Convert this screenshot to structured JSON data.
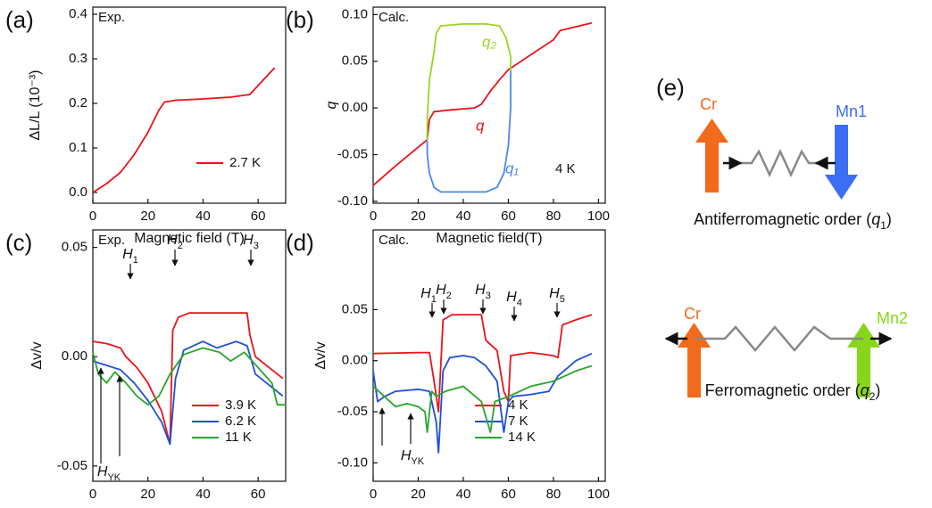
{
  "chart_data": [
    {
      "type": "line",
      "panel_label": "(a)",
      "note": "Exp.",
      "x_label": "Magnetic field (T)",
      "y_label": "ΔL/L (10⁻³)",
      "xlim": [
        0,
        70
      ],
      "ylim": [
        -0.024,
        0.416
      ],
      "xticks": [
        0,
        20,
        40,
        60
      ],
      "yticks": [
        {
          "value": 0,
          "label": "0.0"
        },
        {
          "value": 0.1,
          "label": "0.1"
        },
        {
          "value": 0.2,
          "label": "0.2"
        },
        {
          "value": 0.3,
          "label": "0.3"
        },
        {
          "value": 0.4,
          "label": "0.4"
        }
      ],
      "legend": "lower right",
      "series": [
        {
          "name": "2.7 K",
          "color": "#e8141b",
          "x": [
            0,
            5,
            10,
            15,
            20,
            24,
            26,
            30,
            40,
            50,
            57,
            60,
            63,
            66
          ],
          "values": [
            0,
            0.02,
            0.045,
            0.085,
            0.135,
            0.185,
            0.203,
            0.207,
            0.21,
            0.214,
            0.22,
            0.24,
            0.26,
            0.28
          ]
        }
      ]
    },
    {
      "type": "line",
      "panel_label": "(b)",
      "note": "Calc.",
      "note2": "4 K",
      "x_label": "Magnetic field(T)",
      "y_label": "q",
      "xlim": [
        0,
        103
      ],
      "ylim": [
        -0.102,
        0.108
      ],
      "xticks": [
        0,
        20,
        40,
        60,
        80,
        100
      ],
      "yticks": [
        {
          "value": -0.1,
          "label": "-0.10"
        },
        {
          "value": -0.05,
          "label": "-0.05"
        },
        {
          "value": 0,
          "label": "0.00"
        },
        {
          "value": 0.05,
          "label": "0.05"
        },
        {
          "value": 0.1,
          "label": "0.10"
        }
      ],
      "legend": "inline",
      "series": [
        {
          "name": "q",
          "color": "#e8141b",
          "x": [
            0,
            10,
            20,
            24,
            25,
            27,
            35,
            45,
            48,
            52,
            56,
            60,
            70,
            80,
            83,
            90,
            97
          ],
          "values": [
            -0.083,
            -0.062,
            -0.042,
            -0.034,
            -0.012,
            -0.004,
            -0.002,
            0,
            0.004,
            0.018,
            0.03,
            0.041,
            0.057,
            0.073,
            0.083,
            0.087,
            0.091
          ]
        },
        {
          "name": "q₁",
          "color": "#4d86f0",
          "x": [
            61,
            61,
            60,
            58,
            55,
            50,
            40,
            30,
            27,
            25,
            24,
            24
          ],
          "values": [
            0.04,
            0,
            -0.04,
            -0.07,
            -0.085,
            -0.09,
            -0.09,
            -0.09,
            -0.085,
            -0.07,
            -0.05,
            -0.035
          ]
        },
        {
          "name": "q₂",
          "color": "#9ad425",
          "x": [
            24,
            24,
            25,
            27,
            28,
            30,
            40,
            50,
            56,
            59,
            61,
            61
          ],
          "values": [
            -0.035,
            -0.01,
            0.03,
            0.06,
            0.08,
            0.088,
            0.09,
            0.09,
            0.088,
            0.075,
            0.055,
            0.04
          ]
        }
      ]
    },
    {
      "type": "line",
      "panel_label": "(c)",
      "note": "Exp.",
      "x_label": "Magnetic field (T)",
      "y_label": "Δv/v",
      "xlim": [
        0,
        70
      ],
      "ylim": [
        -0.057,
        0.058
      ],
      "xticks": [
        0,
        20,
        40,
        60
      ],
      "yticks": [
        {
          "value": -0.05,
          "label": "-0.05"
        },
        {
          "value": 0,
          "label": "0.00"
        },
        {
          "value": 0.05,
          "label": "0.05"
        }
      ],
      "legend": "lower right",
      "annotations": [
        {
          "text": "H",
          "sub": "1"
        },
        {
          "text": "H",
          "sub": "2"
        },
        {
          "text": "H",
          "sub": "3"
        },
        {
          "text": "H",
          "sub": "YK"
        }
      ],
      "series": [
        {
          "name": "3.9 K",
          "color": "#e8141b",
          "x": [
            0,
            5,
            10,
            12,
            16,
            20,
            25,
            28,
            29,
            31,
            35,
            45,
            56,
            57,
            59,
            65,
            69
          ],
          "values": [
            0.007,
            0.006,
            0.004,
            0,
            -0.005,
            -0.012,
            -0.025,
            -0.04,
            0.012,
            0.018,
            0.02,
            0.02,
            0.02,
            0.01,
            0,
            -0.006,
            -0.01
          ]
        },
        {
          "name": "6.2 K",
          "color": "#1f4fd8",
          "x": [
            0,
            5,
            10,
            15,
            20,
            25,
            28,
            30,
            33,
            40,
            45,
            52,
            56,
            59,
            64,
            69
          ],
          "values": [
            -0.002,
            -0.004,
            -0.006,
            -0.012,
            -0.02,
            -0.03,
            -0.04,
            -0.01,
            0.003,
            0.007,
            0.004,
            0.007,
            0.005,
            -0.008,
            -0.013,
            -0.018
          ]
        },
        {
          "name": "11 K",
          "color": "#27a52a",
          "x": [
            0,
            2,
            5,
            8,
            12,
            16,
            20,
            24,
            28,
            33,
            40,
            46,
            50,
            55,
            60,
            65,
            67,
            70
          ],
          "values": [
            0.002,
            -0.008,
            -0.012,
            -0.007,
            -0.012,
            -0.018,
            -0.022,
            -0.018,
            -0.008,
            0.001,
            0.004,
            0.002,
            -0.002,
            0.002,
            -0.005,
            -0.012,
            -0.022,
            -0.022
          ]
        }
      ]
    },
    {
      "type": "line",
      "panel_label": "(d)",
      "note": "Calc.",
      "x_label": "Magnetic field (T)",
      "y_label": "Δv/v",
      "xlim": [
        0,
        103
      ],
      "ylim": [
        -0.118,
        0.128
      ],
      "xticks": [
        0,
        20,
        40,
        60,
        80,
        100
      ],
      "yticks": [
        {
          "value": -0.1,
          "label": "-0.10"
        },
        {
          "value": -0.05,
          "label": "-0.05"
        },
        {
          "value": 0,
          "label": "0.00"
        },
        {
          "value": 0.05,
          "label": "0.05"
        }
      ],
      "legend": "lower right",
      "annotations": [
        {
          "text": "H",
          "sub": "1"
        },
        {
          "text": "H",
          "sub": "2"
        },
        {
          "text": "H",
          "sub": "3"
        },
        {
          "text": "H",
          "sub": "4"
        },
        {
          "text": "H",
          "sub": "5"
        },
        {
          "text": "H",
          "sub": "YK"
        }
      ],
      "series": [
        {
          "name": "4 K",
          "color": "#e8141b",
          "x": [
            0,
            20,
            25,
            27,
            29,
            31,
            35,
            48,
            50,
            55,
            58,
            60,
            61,
            70,
            80,
            82,
            84,
            90,
            97
          ],
          "values": [
            0.007,
            0.008,
            0.008,
            -0.02,
            -0.05,
            0.04,
            0.045,
            0.045,
            0.02,
            0.01,
            -0.03,
            -0.04,
            0.005,
            0.008,
            0.005,
            0.003,
            0.035,
            0.04,
            0.045
          ]
        },
        {
          "name": "7 K",
          "color": "#1f4fd8",
          "x": [
            0,
            2,
            5,
            10,
            20,
            25,
            28,
            29,
            31,
            34,
            40,
            45,
            50,
            55,
            58,
            60,
            62,
            70,
            78,
            82,
            90,
            97
          ],
          "values": [
            -0.01,
            -0.04,
            -0.035,
            -0.03,
            -0.028,
            -0.03,
            -0.06,
            -0.09,
            -0.01,
            0.003,
            0.005,
            0.003,
            -0.005,
            -0.02,
            -0.07,
            -0.04,
            -0.035,
            -0.033,
            -0.03,
            -0.015,
            0,
            0.007
          ]
        },
        {
          "name": "14 K",
          "color": "#27a52a",
          "x": [
            0,
            5,
            10,
            15,
            20,
            23,
            24,
            26,
            28,
            32,
            40,
            48,
            52,
            54,
            60,
            70,
            80,
            90,
            97
          ],
          "values": [
            -0.025,
            -0.035,
            -0.045,
            -0.042,
            -0.045,
            -0.05,
            -0.07,
            -0.03,
            -0.035,
            -0.03,
            -0.025,
            -0.04,
            -0.07,
            -0.04,
            -0.035,
            -0.025,
            -0.02,
            -0.01,
            -0.005
          ]
        }
      ]
    }
  ],
  "diagram": {
    "label": "(e)",
    "panels": [
      {
        "left": "Cr",
        "right": "Mn1",
        "caption": {
          "text": "Antiferromagnetic order (",
          "var": "q",
          "sub": "1",
          "close": ")"
        }
      },
      {
        "left": "Cr",
        "right": "Mn2",
        "caption": {
          "text": "Ferromagnetic order (",
          "var": "q",
          "sub": "2",
          "close": ")"
        }
      }
    ]
  }
}
